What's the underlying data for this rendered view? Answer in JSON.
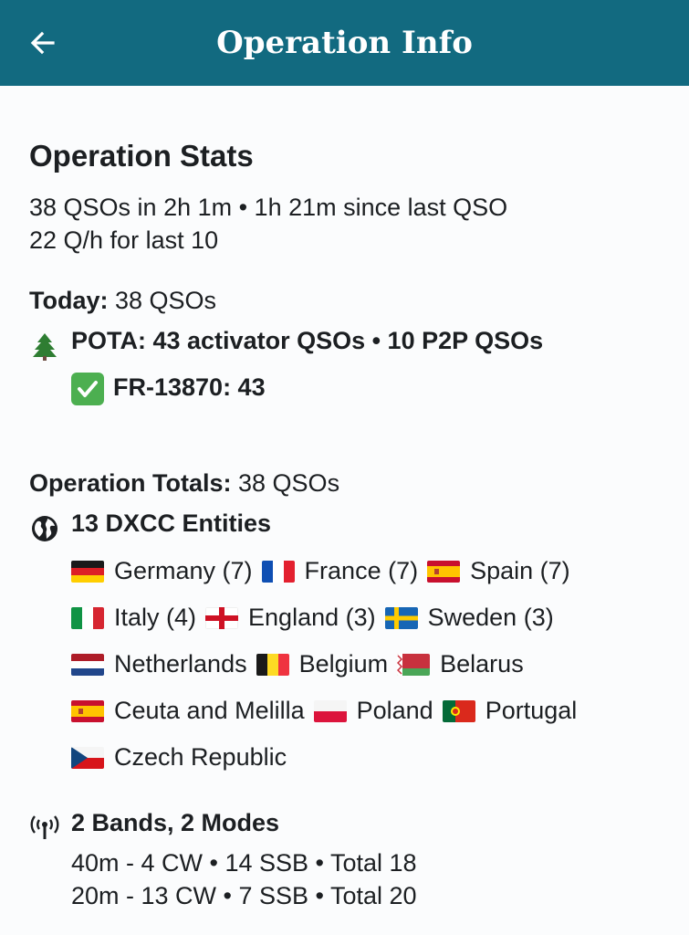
{
  "appbar": {
    "back_icon": "arrow-left-icon",
    "title": "Operation Info",
    "color": "#126a80"
  },
  "stats": {
    "heading": "Operation Stats",
    "line1": "38 QSOs in 2h 1m • 1h 21m since last QSO",
    "line2": "22 Q/h for last 10",
    "today_label": "Today:",
    "today_value": " 38 QSOs",
    "pota_icon": "evergreen-tree-icon",
    "pota_line": "POTA: 43 activator QSOs • 10 P2P QSOs",
    "park_icon": "check-mark-button-icon",
    "park_line": "FR-13870: 43"
  },
  "totals": {
    "label": "Operation Totals:",
    "value": " 38 QSOs",
    "globe_icon": "globe-icon",
    "dxcc_heading": "13 DXCC Entities",
    "rows": [
      [
        {
          "flag": "de",
          "name": "Germany (7)"
        },
        {
          "flag": "fr",
          "name": "France (7)"
        },
        {
          "flag": "es",
          "name": "Spain (7)"
        }
      ],
      [
        {
          "flag": "it",
          "name": "Italy (4)"
        },
        {
          "flag": "en",
          "name": "England (3)"
        },
        {
          "flag": "se",
          "name": "Sweden (3)"
        }
      ],
      [
        {
          "flag": "nl",
          "name": "Netherlands"
        },
        {
          "flag": "be",
          "name": "Belgium"
        },
        {
          "flag": "by",
          "name": "Belarus"
        }
      ],
      [
        {
          "flag": "es",
          "name": "Ceuta and Melilla"
        },
        {
          "flag": "pl",
          "name": "Poland"
        },
        {
          "flag": "pt",
          "name": "Portugal"
        }
      ],
      [
        {
          "flag": "cz",
          "name": "Czech Republic"
        }
      ]
    ]
  },
  "bands": {
    "icon": "antenna-icon",
    "heading": "2 Bands, 2 Modes",
    "line1": "40m -  4 CW • 14 SSB • Total 18",
    "line2": "20m -  13 CW • 7 SSB • Total 20"
  }
}
